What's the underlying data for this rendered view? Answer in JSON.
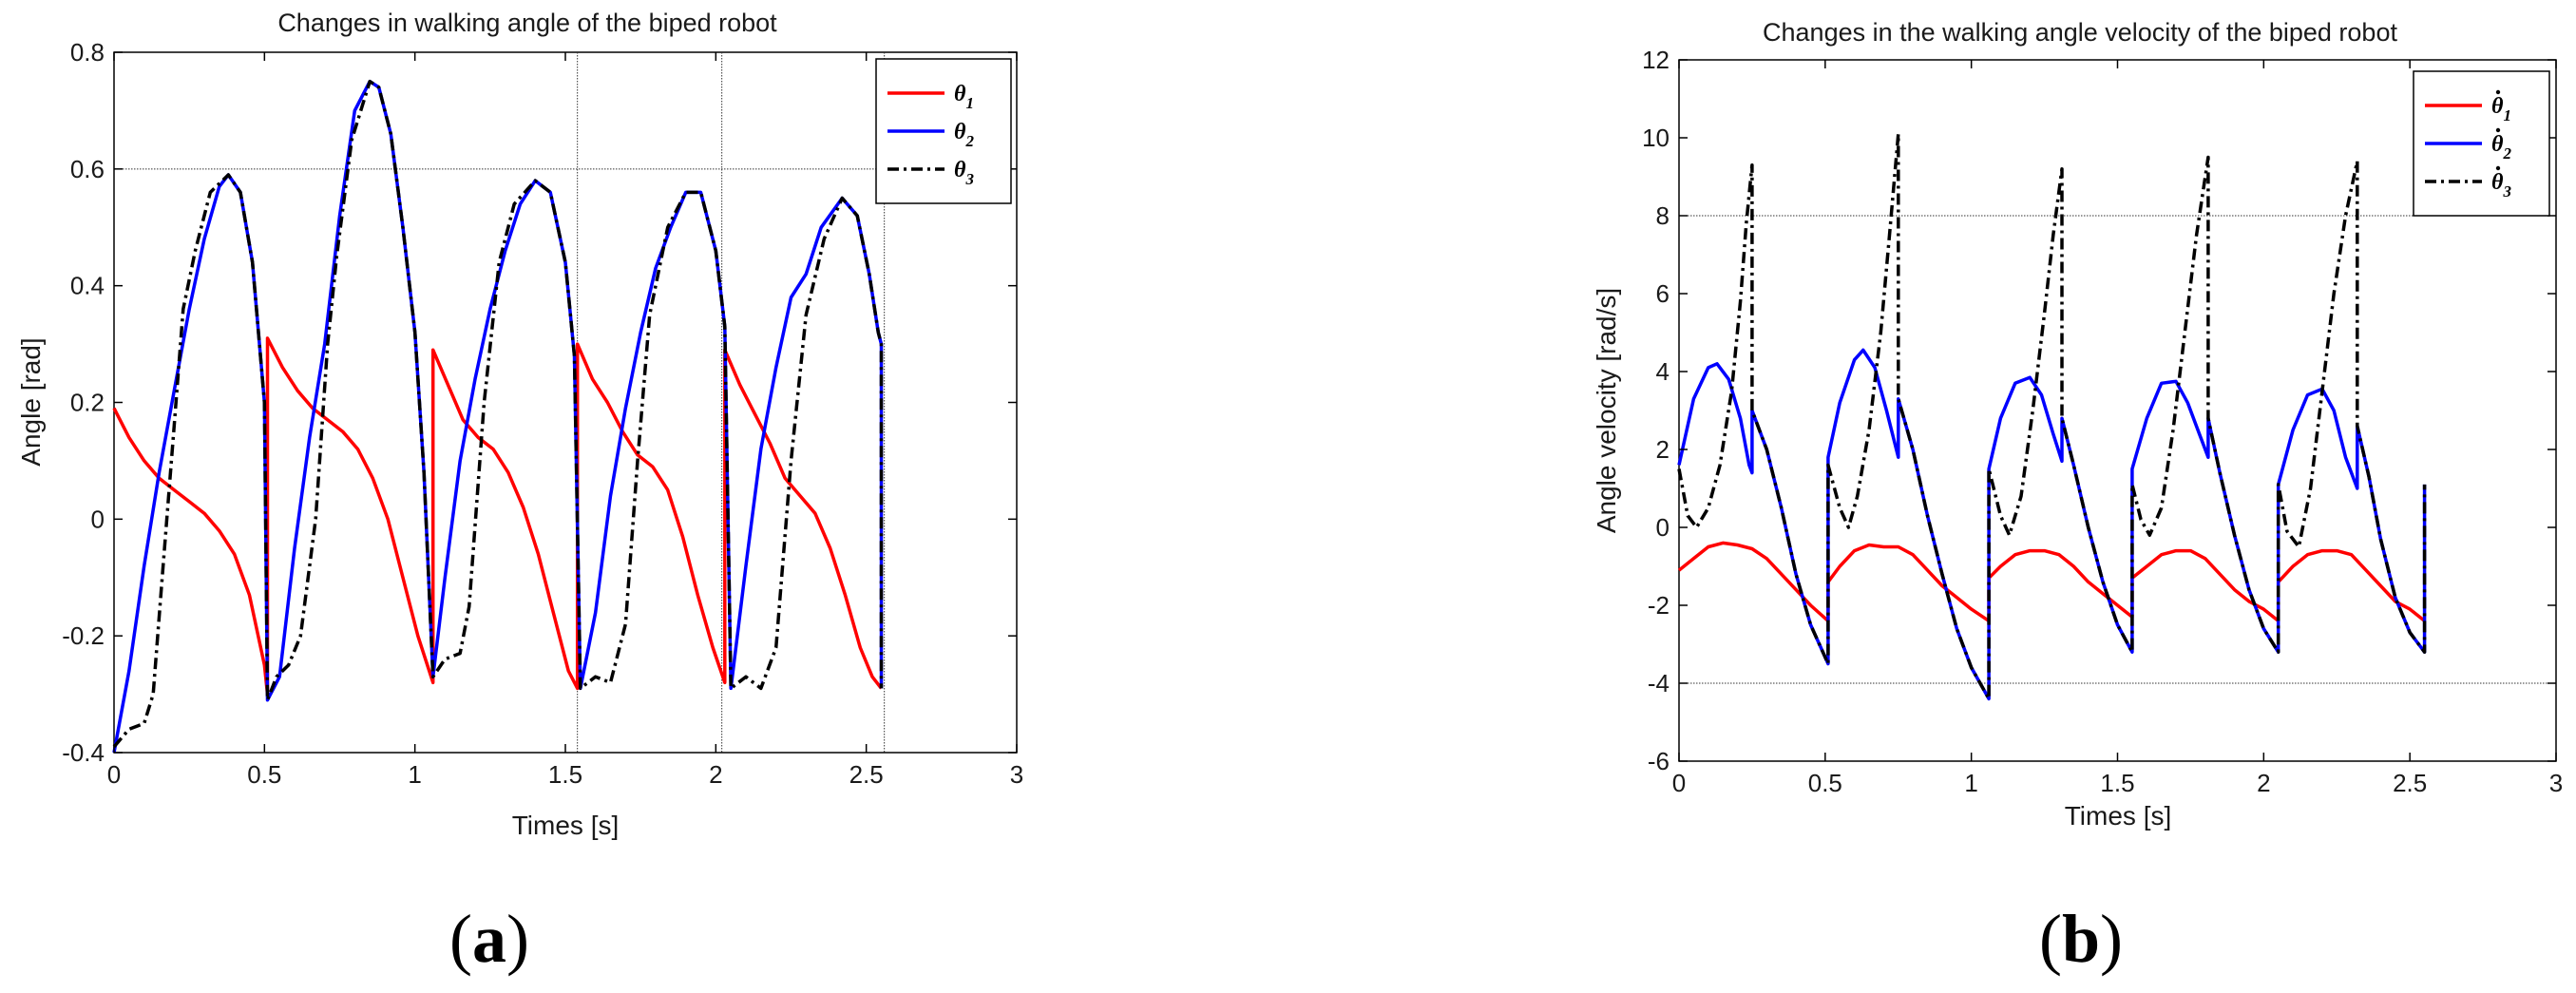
{
  "panels": [
    {
      "label": "a",
      "open": "(",
      "close": ")"
    },
    {
      "label": "b",
      "open": "(",
      "close": ")"
    }
  ],
  "chart_data": [
    {
      "type": "line",
      "title": "Changes in walking angle of the biped robot",
      "xlabel": "Times [s]",
      "ylabel": "Angle [rad]",
      "xlim": [
        0,
        3
      ],
      "ylim": [
        -0.4,
        0.8
      ],
      "xticks": [
        0,
        0.5,
        1,
        1.5,
        2,
        2.5,
        3
      ],
      "yticks": [
        -0.4,
        -0.2,
        0,
        0.2,
        0.4,
        0.6,
        0.8
      ],
      "xtick_labels": [
        "0",
        "0.5",
        "1",
        "1.5",
        "2",
        "2.5",
        "3"
      ],
      "ytick_labels": [
        "-0.4",
        "-0.2",
        "0",
        "0.2",
        "0.4",
        "0.6",
        "0.8"
      ],
      "reference_lines": {
        "y": [
          0.6
        ],
        "x": [
          1.54,
          2.02,
          2.56
        ]
      },
      "legend": {
        "location": "top-right"
      },
      "series": [
        {
          "name": "θ",
          "sub": "1",
          "dot": false,
          "color": "#ff0000",
          "dash": "solid",
          "x": [
            0,
            0.05,
            0.1,
            0.15,
            0.2,
            0.25,
            0.3,
            0.35,
            0.4,
            0.45,
            0.5,
            0.51,
            0.51,
            0.56,
            0.61,
            0.66,
            0.71,
            0.76,
            0.81,
            0.86,
            0.91,
            0.96,
            1.01,
            1.06,
            1.06,
            1.11,
            1.16,
            1.21,
            1.26,
            1.31,
            1.36,
            1.41,
            1.46,
            1.51,
            1.54,
            1.54,
            1.59,
            1.64,
            1.69,
            1.74,
            1.79,
            1.84,
            1.89,
            1.94,
            1.99,
            2.03,
            2.03,
            2.08,
            2.13,
            2.18,
            2.23,
            2.28,
            2.33,
            2.38,
            2.43,
            2.48,
            2.52,
            2.55
          ],
          "y": [
            0.19,
            0.14,
            0.1,
            0.07,
            0.05,
            0.03,
            0.01,
            -0.02,
            -0.06,
            -0.13,
            -0.25,
            -0.3,
            0.31,
            0.26,
            0.22,
            0.19,
            0.17,
            0.15,
            0.12,
            0.07,
            0.0,
            -0.1,
            -0.2,
            -0.28,
            0.29,
            0.23,
            0.17,
            0.14,
            0.12,
            0.08,
            0.02,
            -0.06,
            -0.16,
            -0.26,
            -0.29,
            0.3,
            0.24,
            0.2,
            0.15,
            0.11,
            0.09,
            0.05,
            -0.03,
            -0.13,
            -0.22,
            -0.28,
            0.29,
            0.23,
            0.18,
            0.13,
            0.07,
            0.04,
            0.01,
            -0.05,
            -0.13,
            -0.22,
            -0.27,
            -0.29
          ]
        },
        {
          "name": "θ",
          "sub": "2",
          "dot": false,
          "color": "#0000ff",
          "dash": "solid",
          "x": [
            0,
            0.05,
            0.1,
            0.15,
            0.2,
            0.25,
            0.3,
            0.35,
            0.38,
            0.42,
            0.46,
            0.5,
            0.51,
            0.55,
            0.6,
            0.65,
            0.7,
            0.75,
            0.8,
            0.85,
            0.88,
            0.92,
            0.96,
            1.0,
            1.03,
            1.06,
            1.1,
            1.15,
            1.2,
            1.25,
            1.3,
            1.35,
            1.4,
            1.45,
            1.5,
            1.53,
            1.55,
            1.6,
            1.65,
            1.7,
            1.75,
            1.8,
            1.85,
            1.9,
            1.95,
            2.0,
            2.03,
            2.05,
            2.1,
            2.15,
            2.2,
            2.25,
            2.3,
            2.35,
            2.42,
            2.47,
            2.51,
            2.54,
            2.55,
            2.55
          ],
          "y": [
            -0.4,
            -0.26,
            -0.08,
            0.08,
            0.22,
            0.36,
            0.48,
            0.57,
            0.59,
            0.56,
            0.44,
            0.2,
            -0.31,
            -0.27,
            -0.05,
            0.14,
            0.3,
            0.52,
            0.7,
            0.75,
            0.74,
            0.66,
            0.5,
            0.32,
            0.08,
            -0.27,
            -0.1,
            0.1,
            0.24,
            0.36,
            0.46,
            0.54,
            0.58,
            0.56,
            0.44,
            0.28,
            -0.29,
            -0.16,
            0.04,
            0.19,
            0.32,
            0.43,
            0.5,
            0.56,
            0.56,
            0.46,
            0.33,
            -0.29,
            -0.08,
            0.12,
            0.26,
            0.38,
            0.42,
            0.5,
            0.55,
            0.52,
            0.42,
            0.32,
            0.3,
            -0.29
          ]
        },
        {
          "name": "θ",
          "sub": "3",
          "dot": false,
          "color": "#000000",
          "dash": "dashdot",
          "x": [
            0,
            0.05,
            0.1,
            0.13,
            0.16,
            0.2,
            0.23,
            0.27,
            0.32,
            0.38,
            0.42,
            0.46,
            0.5,
            0.51,
            0.54,
            0.58,
            0.62,
            0.67,
            0.71,
            0.74,
            0.79,
            0.85,
            0.88,
            0.92,
            0.96,
            1.0,
            1.03,
            1.06,
            1.1,
            1.15,
            1.18,
            1.23,
            1.28,
            1.33,
            1.4,
            1.45,
            1.5,
            1.53,
            1.55,
            1.6,
            1.65,
            1.7,
            1.74,
            1.78,
            1.84,
            1.9,
            1.95,
            2.0,
            2.03,
            2.05,
            2.1,
            2.15,
            2.2,
            2.25,
            2.3,
            2.36,
            2.42,
            2.47,
            2.51,
            2.54,
            2.55,
            2.55
          ],
          "y": [
            -0.39,
            -0.36,
            -0.35,
            -0.3,
            -0.1,
            0.16,
            0.36,
            0.46,
            0.56,
            0.59,
            0.56,
            0.44,
            0.2,
            -0.31,
            -0.27,
            -0.25,
            -0.2,
            0.0,
            0.3,
            0.45,
            0.65,
            0.75,
            0.74,
            0.66,
            0.5,
            0.32,
            0.08,
            -0.27,
            -0.24,
            -0.23,
            -0.15,
            0.2,
            0.44,
            0.54,
            0.58,
            0.56,
            0.44,
            0.28,
            -0.29,
            -0.27,
            -0.28,
            -0.18,
            0.1,
            0.35,
            0.5,
            0.56,
            0.56,
            0.46,
            0.33,
            -0.29,
            -0.27,
            -0.29,
            -0.22,
            0.1,
            0.35,
            0.48,
            0.55,
            0.52,
            0.42,
            0.32,
            0.3,
            -0.29
          ]
        }
      ]
    },
    {
      "type": "line",
      "title": "Changes in the walking angle velocity of the biped robot",
      "xlabel": "Times [s]",
      "ylabel": "Angle velocity [rad/s]",
      "xlim": [
        0,
        3
      ],
      "ylim": [
        -6,
        12
      ],
      "xticks": [
        0,
        0.5,
        1,
        1.5,
        2,
        2.5,
        3
      ],
      "yticks": [
        -6,
        -4,
        -2,
        0,
        2,
        4,
        6,
        8,
        10,
        12
      ],
      "xtick_labels": [
        "0",
        "0.5",
        "1",
        "1.5",
        "2",
        "2.5",
        "3"
      ],
      "ytick_labels": [
        "-6",
        "-4",
        "-2",
        "0",
        "2",
        "4",
        "6",
        "8",
        "10",
        "12"
      ],
      "reference_lines": {
        "y": [
          8,
          -4
        ],
        "x": []
      },
      "legend": {
        "location": "top-right"
      },
      "series": [
        {
          "name": "θ",
          "sub": "1",
          "dot": true,
          "color": "#ff0000",
          "dash": "solid",
          "x": [
            0,
            0.05,
            0.1,
            0.15,
            0.2,
            0.25,
            0.3,
            0.35,
            0.4,
            0.45,
            0.51,
            0.51,
            0.55,
            0.6,
            0.65,
            0.7,
            0.75,
            0.8,
            0.85,
            0.9,
            0.95,
            1.0,
            1.06,
            1.06,
            1.1,
            1.15,
            1.2,
            1.25,
            1.3,
            1.35,
            1.4,
            1.45,
            1.5,
            1.55,
            1.55,
            1.6,
            1.65,
            1.7,
            1.75,
            1.8,
            1.85,
            1.9,
            1.95,
            2.0,
            2.05,
            2.05,
            2.1,
            2.15,
            2.2,
            2.25,
            2.3,
            2.35,
            2.4,
            2.45,
            2.5,
            2.55
          ],
          "y": [
            -1.1,
            -0.8,
            -0.5,
            -0.4,
            -0.45,
            -0.55,
            -0.8,
            -1.2,
            -1.6,
            -2.0,
            -2.4,
            -1.4,
            -1.0,
            -0.6,
            -0.45,
            -0.5,
            -0.5,
            -0.7,
            -1.1,
            -1.5,
            -1.8,
            -2.1,
            -2.4,
            -1.3,
            -1.0,
            -0.7,
            -0.6,
            -0.6,
            -0.7,
            -1.0,
            -1.4,
            -1.7,
            -2.0,
            -2.3,
            -1.3,
            -1.0,
            -0.7,
            -0.6,
            -0.6,
            -0.8,
            -1.2,
            -1.6,
            -1.9,
            -2.1,
            -2.4,
            -1.4,
            -1.0,
            -0.7,
            -0.6,
            -0.6,
            -0.7,
            -1.1,
            -1.5,
            -1.9,
            -2.1,
            -2.4
          ]
        },
        {
          "name": "θ",
          "sub": "2",
          "dot": true,
          "color": "#0000ff",
          "dash": "solid",
          "x": [
            0,
            0.05,
            0.1,
            0.13,
            0.17,
            0.21,
            0.24,
            0.25,
            0.25,
            0.3,
            0.35,
            0.4,
            0.45,
            0.51,
            0.51,
            0.55,
            0.6,
            0.63,
            0.67,
            0.71,
            0.75,
            0.75,
            0.8,
            0.85,
            0.9,
            0.95,
            1.0,
            1.06,
            1.06,
            1.1,
            1.15,
            1.2,
            1.24,
            1.28,
            1.31,
            1.31,
            1.35,
            1.4,
            1.45,
            1.5,
            1.55,
            1.55,
            1.6,
            1.65,
            1.7,
            1.74,
            1.78,
            1.81,
            1.81,
            1.85,
            1.9,
            1.95,
            2.0,
            2.05,
            2.05,
            2.1,
            2.15,
            2.2,
            2.24,
            2.28,
            2.32,
            2.32,
            2.36,
            2.4,
            2.45,
            2.5,
            2.55,
            2.55
          ],
          "y": [
            1.6,
            3.3,
            4.1,
            4.2,
            3.8,
            2.8,
            1.6,
            1.4,
            3.0,
            2.0,
            0.5,
            -1.2,
            -2.5,
            -3.5,
            1.8,
            3.2,
            4.3,
            4.55,
            4.1,
            3.0,
            1.8,
            3.3,
            2.0,
            0.3,
            -1.2,
            -2.6,
            -3.6,
            -4.4,
            1.5,
            2.8,
            3.7,
            3.85,
            3.4,
            2.4,
            1.7,
            2.8,
            1.6,
            0.0,
            -1.4,
            -2.5,
            -3.2,
            1.5,
            2.8,
            3.7,
            3.75,
            3.2,
            2.4,
            1.8,
            2.8,
            1.4,
            -0.2,
            -1.6,
            -2.6,
            -3.2,
            1.1,
            2.5,
            3.4,
            3.55,
            3.0,
            1.8,
            1.0,
            2.6,
            1.3,
            -0.3,
            -1.8,
            -2.7,
            -3.2,
            1.1
          ]
        },
        {
          "name": "θ",
          "sub": "3",
          "dot": true,
          "color": "#000000",
          "dash": "dashdot",
          "x": [
            0,
            0.03,
            0.06,
            0.1,
            0.14,
            0.18,
            0.21,
            0.23,
            0.25,
            0.25,
            0.3,
            0.35,
            0.4,
            0.45,
            0.51,
            0.51,
            0.55,
            0.58,
            0.61,
            0.65,
            0.69,
            0.72,
            0.75,
            0.75,
            0.8,
            0.85,
            0.9,
            0.95,
            1.0,
            1.06,
            1.06,
            1.1,
            1.13,
            1.17,
            1.21,
            1.25,
            1.28,
            1.31,
            1.31,
            1.35,
            1.4,
            1.45,
            1.5,
            1.55,
            1.55,
            1.58,
            1.61,
            1.65,
            1.69,
            1.73,
            1.77,
            1.81,
            1.81,
            1.85,
            1.9,
            1.95,
            2.0,
            2.05,
            2.05,
            2.08,
            2.12,
            2.16,
            2.2,
            2.24,
            2.28,
            2.32,
            2.32,
            2.36,
            2.4,
            2.45,
            2.5,
            2.55,
            2.55
          ],
          "y": [
            1.5,
            0.3,
            0.0,
            0.5,
            1.6,
            3.5,
            5.8,
            7.8,
            9.3,
            3.0,
            2.0,
            0.5,
            -1.2,
            -2.5,
            -3.5,
            1.6,
            0.5,
            0.0,
            0.8,
            2.5,
            5.0,
            7.5,
            10.1,
            3.3,
            2.0,
            0.3,
            -1.2,
            -2.6,
            -3.6,
            -4.4,
            1.5,
            0.3,
            -0.2,
            0.8,
            3.0,
            5.5,
            7.5,
            9.2,
            2.8,
            1.6,
            0.0,
            -1.4,
            -2.5,
            -3.2,
            1.1,
            0.2,
            -0.2,
            0.5,
            2.5,
            5.0,
            7.5,
            9.5,
            2.8,
            1.4,
            -0.2,
            -1.6,
            -2.6,
            -3.2,
            1.1,
            -0.1,
            -0.5,
            1.0,
            3.5,
            6.0,
            8.0,
            9.4,
            2.6,
            1.3,
            -0.3,
            -1.8,
            -2.7,
            -3.2,
            1.1
          ]
        }
      ]
    }
  ]
}
